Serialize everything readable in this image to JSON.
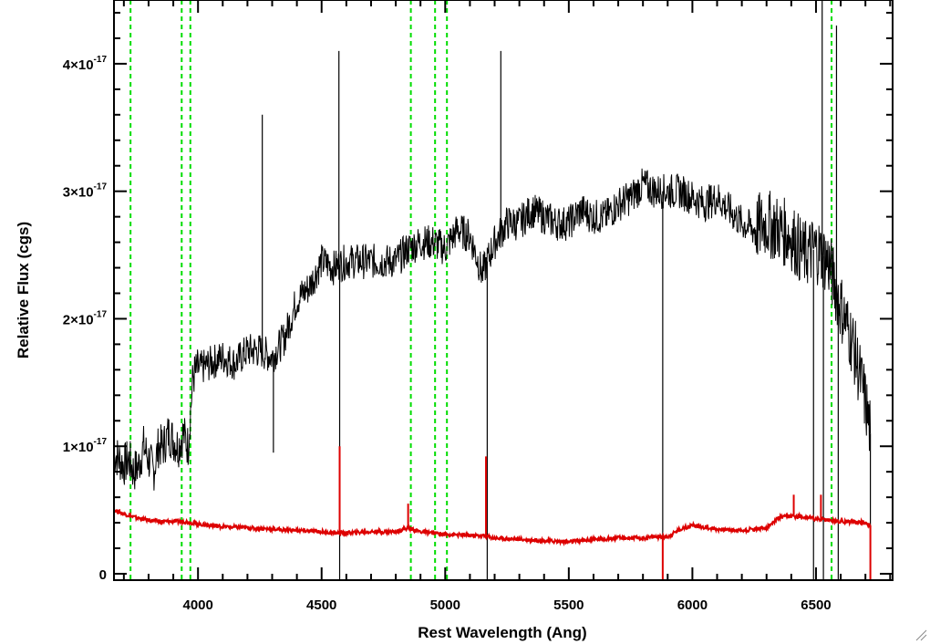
{
  "chart_data": {
    "type": "line",
    "xlabel": "Rest Wavelength (Ang)",
    "ylabel": "Relative Flux (cgs)",
    "xlim": [
      3660,
      6810
    ],
    "ylim": [
      -5e-19,
      4.5e-17
    ],
    "x_ticks": [
      4000,
      4500,
      5000,
      5500,
      6000,
      6500
    ],
    "x_tick_labels": [
      "4000",
      "4500",
      "5000",
      "5500",
      "6000",
      "6500"
    ],
    "y_ticks": [
      0,
      1e-17,
      2e-17,
      3e-17,
      4e-17
    ],
    "y_tick_labels": [
      {
        "mantissa": "0",
        "exponent": ""
      },
      {
        "mantissa": "1×10",
        "exponent": "-17"
      },
      {
        "mantissa": "2×10",
        "exponent": "-17"
      },
      {
        "mantissa": "3×10",
        "exponent": "-17"
      },
      {
        "mantissa": "4×10",
        "exponent": "-17"
      }
    ],
    "vertical_reference_lines": {
      "color": "#00dd00",
      "style": "dashed",
      "x": [
        3727,
        3934,
        3969,
        4861,
        4959,
        5007,
        6563
      ]
    },
    "series": [
      {
        "color": "#000000",
        "x": [
          3660,
          3680,
          3700,
          3720,
          3740,
          3760,
          3780,
          3800,
          3820,
          3840,
          3860,
          3880,
          3900,
          3920,
          3940,
          3960,
          3980,
          4000,
          4050,
          4100,
          4150,
          4200,
          4250,
          4300,
          4350,
          4400,
          4450,
          4500,
          4550,
          4600,
          4650,
          4700,
          4750,
          4800,
          4850,
          4900,
          4950,
          5000,
          5050,
          5100,
          5150,
          5200,
          5250,
          5300,
          5350,
          5400,
          5450,
          5500,
          5550,
          5600,
          5650,
          5700,
          5750,
          5800,
          5850,
          5900,
          5950,
          6000,
          6050,
          6100,
          6150,
          6200,
          6250,
          6300,
          6350,
          6400,
          6450,
          6500,
          6550,
          6600,
          6650,
          6700,
          6720
        ],
        "y": [
          9.5e-18,
          9e-18,
          8.5e-18,
          9e-18,
          8e-18,
          8.5e-18,
          1e-17,
          9e-18,
          8e-18,
          1e-17,
          1e-17,
          1.1e-17,
          1.05e-17,
          1e-17,
          1.1e-17,
          1e-17,
          1.55e-17,
          1.6e-17,
          1.65e-17,
          1.7e-17,
          1.65e-17,
          1.75e-17,
          1.75e-17,
          1.7e-17,
          1.85e-17,
          2.15e-17,
          2.25e-17,
          2.45e-17,
          2.4e-17,
          2.45e-17,
          2.45e-17,
          2.45e-17,
          2.45e-17,
          2.45e-17,
          2.55e-17,
          2.6e-17,
          2.6e-17,
          2.55e-17,
          2.7e-17,
          2.65e-17,
          2.35e-17,
          2.6e-17,
          2.75e-17,
          2.75e-17,
          2.85e-17,
          2.8e-17,
          2.75e-17,
          2.75e-17,
          2.85e-17,
          2.8e-17,
          2.8e-17,
          2.9e-17,
          2.95e-17,
          3.05e-17,
          3e-17,
          3e-17,
          3e-17,
          2.95e-17,
          2.9e-17,
          2.95e-17,
          2.85e-17,
          2.75e-17,
          2.7e-17,
          2.75e-17,
          2.7e-17,
          2.65e-17,
          2.5e-17,
          2.55e-17,
          2.45e-17,
          2.1e-17,
          1.8e-17,
          1.35e-17,
          1.1e-17
        ],
        "spikes": [
          {
            "x": 4570,
            "y": 4.1e-17
          },
          {
            "x": 4573,
            "y": -5e-19
          },
          {
            "x": 5170,
            "y": -5e-19
          },
          {
            "x": 5225,
            "y": 4.1e-17
          },
          {
            "x": 5880,
            "y": -5e-19
          },
          {
            "x": 6490,
            "y": -5e-19
          },
          {
            "x": 6525,
            "y": 4.5e-17
          },
          {
            "x": 6530,
            "y": -5e-19
          },
          {
            "x": 6583,
            "y": 4.3e-17
          },
          {
            "x": 6590,
            "y": -5e-19
          },
          {
            "x": 6720,
            "y": -5e-19
          },
          {
            "x": 4260,
            "y": 3.6e-17
          },
          {
            "x": 4305,
            "y": 9.5e-18
          }
        ]
      },
      {
        "color": "#dd0000",
        "x": [
          3660,
          3700,
          3750,
          3800,
          3850,
          3900,
          3950,
          4000,
          4100,
          4200,
          4300,
          4400,
          4500,
          4550,
          4600,
          4700,
          4800,
          4850,
          4900,
          5000,
          5100,
          5150,
          5200,
          5300,
          5400,
          5500,
          5600,
          5700,
          5800,
          5850,
          5900,
          5950,
          6000,
          6100,
          6200,
          6300,
          6350,
          6400,
          6450,
          6500,
          6550,
          6600,
          6650,
          6700,
          6720
        ],
        "y": [
          5e-18,
          4.7e-18,
          4.4e-18,
          4.2e-18,
          4.1e-18,
          4.1e-18,
          4.1e-18,
          3.9e-18,
          3.7e-18,
          3.6e-18,
          3.5e-18,
          3.4e-18,
          3.3e-18,
          3.2e-18,
          3.2e-18,
          3.3e-18,
          3.3e-18,
          3.6e-18,
          3.3e-18,
          3.1e-18,
          3e-18,
          3e-18,
          2.8e-18,
          2.7e-18,
          2.6e-18,
          2.5e-18,
          2.7e-18,
          2.8e-18,
          2.8e-18,
          2.9e-18,
          2.9e-18,
          3.5e-18,
          3.8e-18,
          3.5e-18,
          3.4e-18,
          3.6e-18,
          4.4e-18,
          4.5e-18,
          4.5e-18,
          4.3e-18,
          4.2e-18,
          4.1e-18,
          4.1e-18,
          4e-18,
          3.8e-18
        ],
        "spikes": [
          {
            "x": 4573,
            "y": 1e-17
          },
          {
            "x": 4850,
            "y": 5.5e-18
          },
          {
            "x": 5165,
            "y": 9.2e-18
          },
          {
            "x": 5880,
            "y": -5e-19
          },
          {
            "x": 6720,
            "y": -5e-19
          },
          {
            "x": 6410,
            "y": 6.2e-18
          },
          {
            "x": 6520,
            "y": 6.2e-18
          }
        ]
      }
    ]
  }
}
